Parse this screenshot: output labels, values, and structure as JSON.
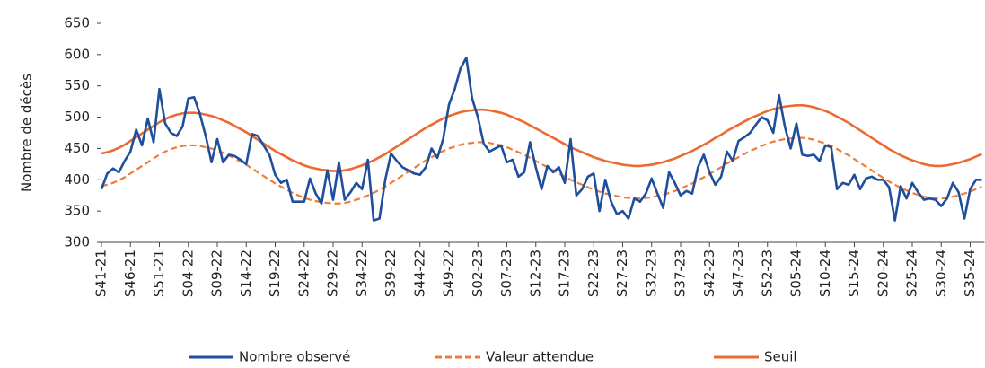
{
  "chart_data": {
    "type": "line",
    "y_label": "Nombre de décès",
    "categories": [
      "S41-21",
      null,
      null,
      null,
      null,
      "S46-21",
      null,
      null,
      null,
      null,
      "S51-21",
      null,
      null,
      null,
      null,
      "S04-22",
      null,
      null,
      null,
      null,
      "S09-22",
      null,
      null,
      null,
      null,
      "S14-22",
      null,
      null,
      null,
      null,
      "S19-22",
      null,
      null,
      null,
      null,
      "S24-22",
      null,
      null,
      null,
      null,
      "S29-22",
      null,
      null,
      null,
      null,
      "S34-22",
      null,
      null,
      null,
      null,
      "S39-22",
      null,
      null,
      null,
      null,
      "S44-22",
      null,
      null,
      null,
      null,
      "S49-22",
      null,
      null,
      null,
      null,
      "S02-23",
      null,
      null,
      null,
      null,
      "S07-23",
      null,
      null,
      null,
      null,
      "S12-23",
      null,
      null,
      null,
      null,
      "S17-23",
      null,
      null,
      null,
      null,
      "S22-23",
      null,
      null,
      null,
      null,
      "S27-23",
      null,
      null,
      null,
      null,
      "S32-23",
      null,
      null,
      null,
      null,
      "S37-23",
      null,
      null,
      null,
      null,
      "S42-23",
      null,
      null,
      null,
      null,
      "S47-23",
      null,
      null,
      null,
      null,
      "S52-23",
      null,
      null,
      null,
      null,
      "S05-24",
      null,
      null,
      null,
      null,
      "S10-24",
      null,
      null,
      null,
      null,
      "S15-24",
      null,
      null,
      null,
      null,
      "S20-24",
      null,
      null,
      null,
      null,
      "S25-24",
      null,
      null,
      null,
      null,
      "S30-24",
      null,
      null,
      null,
      null,
      "S35-24",
      null,
      null
    ],
    "series": [
      {
        "name": "Nombre observé",
        "color": "#1f4e9c",
        "dash": false,
        "values": [
          385,
          410,
          418,
          412,
          430,
          445,
          480,
          455,
          498,
          460,
          545,
          490,
          475,
          470,
          485,
          530,
          532,
          505,
          470,
          428,
          465,
          428,
          440,
          438,
          432,
          425,
          473,
          470,
          455,
          440,
          408,
          395,
          400,
          365,
          365,
          365,
          402,
          378,
          362,
          415,
          368,
          428,
          368,
          380,
          395,
          385,
          432,
          335,
          338,
          400,
          442,
          430,
          420,
          415,
          410,
          408,
          420,
          450,
          435,
          465,
          520,
          545,
          578,
          595,
          530,
          500,
          458,
          445,
          450,
          455,
          428,
          432,
          405,
          412,
          460,
          420,
          385,
          422,
          412,
          420,
          395,
          465,
          375,
          385,
          405,
          410,
          350,
          400,
          365,
          345,
          350,
          338,
          370,
          365,
          378,
          402,
          378,
          355,
          412,
          395,
          375,
          382,
          378,
          420,
          440,
          412,
          392,
          405,
          445,
          430,
          462,
          468,
          475,
          488,
          500,
          495,
          475,
          535,
          485,
          450,
          490,
          440,
          438,
          440,
          430,
          455,
          452,
          385,
          395,
          392,
          408,
          385,
          402,
          405,
          400,
          400,
          388,
          335,
          390,
          370,
          395,
          380,
          368,
          370,
          368,
          358,
          370,
          395,
          380,
          338,
          385,
          400,
          400
        ]
      },
      {
        "name": "Valeur attendue",
        "color": "#f07c3a",
        "dash": true,
        "values": [
          390,
          392,
          395,
          399,
          404,
          410,
          416,
          422,
          428,
          434,
          440,
          445,
          449,
          452,
          454,
          455,
          455,
          454,
          452,
          450,
          447,
          443,
          439,
          434,
          429,
          424,
          418,
          412,
          406,
          400,
          394,
          389,
          384,
          379,
          375,
          371,
          368,
          366,
          364,
          363,
          362,
          362,
          363,
          365,
          368,
          371,
          375,
          379,
          384,
          389,
          395,
          401,
          407,
          413,
          419,
          425,
          431,
          436,
          441,
          446,
          450,
          453,
          456,
          458,
          459,
          460,
          460,
          459,
          457,
          455,
          452,
          448,
          444,
          440,
          435,
          430,
          425,
          420,
          415,
          410,
          405,
          400,
          396,
          392,
          388,
          384,
          381,
          378,
          376,
          374,
          372,
          371,
          370,
          370,
          371,
          372,
          374,
          376,
          379,
          382,
          386,
          390,
          394,
          399,
          404,
          409,
          415,
          420,
          426,
          431,
          436,
          441,
          446,
          450,
          454,
          458,
          461,
          463,
          465,
          466,
          467,
          467,
          466,
          464,
          461,
          458,
          454,
          449,
          444,
          439,
          433,
          427,
          421,
          415,
          409,
          403,
          397,
          392,
          387,
          383,
          379,
          376,
          373,
          371,
          370,
          370,
          371,
          373,
          375,
          378,
          381,
          385,
          389
        ]
      },
      {
        "name": "Seuil",
        "color": "#ec6a32",
        "dash": false,
        "values": [
          442,
          444,
          447,
          451,
          456,
          462,
          468,
          474,
          480,
          486,
          492,
          497,
          501,
          504,
          506,
          507,
          507,
          506,
          504,
          502,
          499,
          495,
          491,
          486,
          481,
          476,
          470,
          464,
          458,
          452,
          446,
          441,
          436,
          431,
          427,
          423,
          420,
          418,
          416,
          415,
          414,
          414,
          415,
          417,
          420,
          423,
          427,
          431,
          436,
          441,
          447,
          453,
          459,
          465,
          471,
          477,
          483,
          488,
          493,
          498,
          502,
          505,
          508,
          510,
          511,
          512,
          512,
          511,
          509,
          507,
          504,
          500,
          496,
          492,
          487,
          482,
          477,
          472,
          467,
          462,
          457,
          452,
          448,
          444,
          440,
          436,
          433,
          430,
          428,
          426,
          424,
          423,
          422,
          422,
          423,
          424,
          426,
          428,
          431,
          434,
          438,
          442,
          446,
          451,
          456,
          461,
          467,
          472,
          478,
          483,
          488,
          493,
          498,
          502,
          506,
          510,
          513,
          515,
          517,
          518,
          519,
          519,
          518,
          516,
          513,
          510,
          506,
          501,
          496,
          491,
          485,
          479,
          473,
          467,
          461,
          455,
          449,
          444,
          439,
          435,
          431,
          428,
          425,
          423,
          422,
          422,
          423,
          425,
          427,
          430,
          433,
          437,
          441
        ]
      }
    ],
    "ylim": [
      300,
      650
    ],
    "yticks": [
      300,
      350,
      400,
      450,
      500,
      550,
      600,
      650
    ],
    "grid": false,
    "legend": "bottom"
  }
}
